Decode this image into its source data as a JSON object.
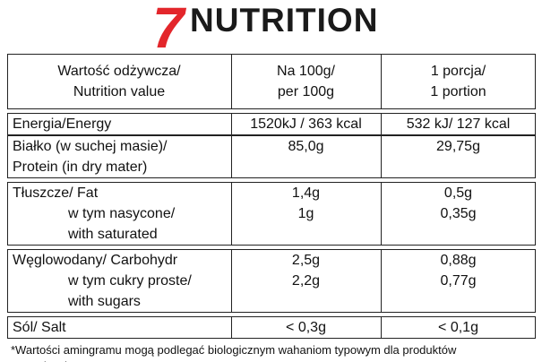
{
  "header": {
    "logo_digit": "7",
    "logo_text": "NUTRITION"
  },
  "table": {
    "columns": [
      [
        "Wartość odżywcza/",
        "Nutrition value"
      ],
      [
        "Na 100g/",
        "per 100g"
      ],
      [
        "1 porcja/",
        "1 portion"
      ]
    ],
    "groups": [
      [
        {
          "label": [
            "Energia/Energy"
          ],
          "per_100g": "1520kJ / 363 kcal",
          "portion": "532 kJ/ 127 kcal"
        }
      ],
      [
        {
          "label": [
            "Białko (w suchej masie)/",
            "Protein (in dry mater)"
          ],
          "per_100g": "85,0g",
          "portion": "29,75g"
        }
      ],
      [
        {
          "label": [
            "Tłuszcze/ Fat"
          ],
          "per_100g": "1,4g",
          "portion": "0,5g"
        },
        {
          "label": [
            "w tym nasycone/",
            "with saturated"
          ],
          "per_100g": "1g",
          "portion": "0,35g"
        }
      ],
      [
        {
          "label": [
            "Węglowodany/ Carbohydr"
          ],
          "per_100g": "2,5g",
          "portion": "0,88g"
        },
        {
          "label": [
            "w tym cukry proste/",
            "with sugars"
          ],
          "per_100g": "2,2g",
          "portion": "0,77g"
        }
      ],
      [
        {
          "label": [
            "Sól/ Salt"
          ],
          "per_100g": "< 0,3g",
          "portion": "< 0,1g"
        }
      ]
    ]
  },
  "footnote": [
    "*Wartości amingramu mogą podlegać biologicznym wahaniom typowym dla produktów",
    "naturalnych."
  ]
}
